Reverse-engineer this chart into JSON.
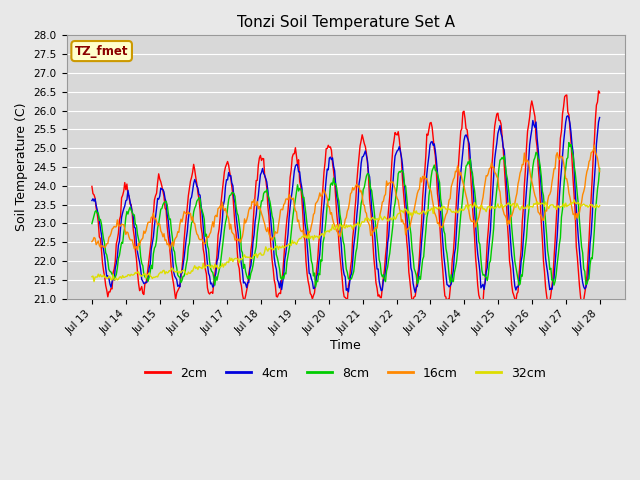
{
  "title": "Tonzi Soil Temperature Set A",
  "xlabel": "Time",
  "ylabel": "Soil Temperature (C)",
  "ylim": [
    21.0,
    28.0
  ],
  "yticks": [
    21.0,
    21.5,
    22.0,
    22.5,
    23.0,
    23.5,
    24.0,
    24.5,
    25.0,
    25.5,
    26.0,
    26.5,
    27.0,
    27.5,
    28.0
  ],
  "xtick_labels": [
    "Jul 13",
    "Jul 14",
    "Jul 15",
    "Jul 16",
    "Jul 17",
    "Jul 18",
    "Jul 19",
    "Jul 20",
    "Jul 21",
    "Jul 22",
    "Jul 23",
    "Jul 24",
    "Jul 25",
    "Jul 26",
    "Jul 27",
    "Jul 28"
  ],
  "line_colors": {
    "2cm": "#ff0000",
    "4cm": "#0000dd",
    "8cm": "#00cc00",
    "16cm": "#ff8800",
    "32cm": "#dddd00"
  },
  "legend_label": "TZ_fmet",
  "legend_box_color": "#ffffcc",
  "legend_box_edge": "#cc9900",
  "plot_bg": "#d8d8d8",
  "fig_bg": "#e8e8e8",
  "grid_color": "#ffffff",
  "n_points": 480
}
